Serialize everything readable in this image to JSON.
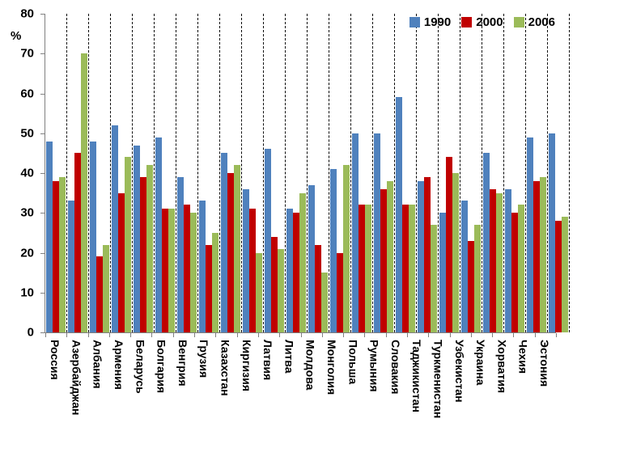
{
  "chart_data": {
    "type": "bar",
    "title": "",
    "ylabel": "%",
    "xlabel": "",
    "ylim": [
      0,
      80
    ],
    "yticks": [
      0,
      10,
      20,
      30,
      40,
      50,
      60,
      70,
      80
    ],
    "grid": "vertical-dashed-separators-between-categories",
    "legend_position": "top-right-inside",
    "categories": [
      "Россия",
      "Азербайджан",
      "Албания",
      "Армения",
      "Беларусь",
      "Болгария",
      "Венгрия",
      "Грузия",
      "Казахстан",
      "Киргизия",
      "Латвия",
      "Литва",
      "Молдова",
      "Монголия",
      "Польша",
      "Румыния",
      "Словакия",
      "Таджикистан",
      "Туркменистан",
      "Узбекистан",
      "Украина",
      "Хорватия",
      "Чехия",
      "Эстония"
    ],
    "series": [
      {
        "name": "1990",
        "color": "#4F81BD",
        "values": [
          48,
          33,
          48,
          52,
          47,
          49,
          39,
          33,
          45,
          36,
          46,
          31,
          37,
          41,
          50,
          50,
          59,
          38,
          30,
          33,
          45,
          36,
          49,
          50
        ]
      },
      {
        "name": "2000",
        "color": "#C00000",
        "values": [
          38,
          45,
          19,
          35,
          39,
          31,
          32,
          22,
          40,
          31,
          24,
          30,
          22,
          20,
          32,
          36,
          32,
          39,
          44,
          23,
          36,
          30,
          38,
          28
        ]
      },
      {
        "name": "2006",
        "color": "#9BBB59",
        "values": [
          39,
          70,
          22,
          44,
          42,
          31,
          30,
          25,
          42,
          20,
          21,
          35,
          15,
          42,
          32,
          38,
          32,
          27,
          40,
          27,
          35,
          32,
          39,
          29
        ]
      }
    ],
    "axis_color": "#808080",
    "separator_color": "#000000"
  }
}
